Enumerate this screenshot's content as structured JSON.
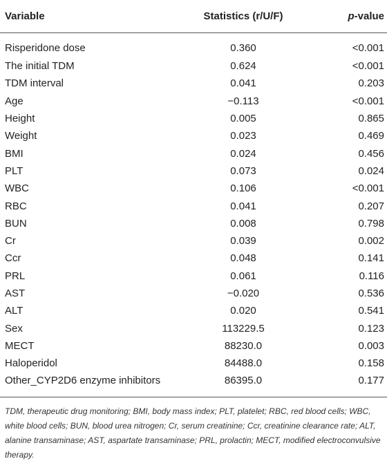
{
  "table": {
    "headers": {
      "variable": "Variable",
      "statistics": "Statistics (r/U/F)",
      "p_prefix": "p",
      "p_suffix": "-value"
    },
    "rows": [
      {
        "variable": "Risperidone dose",
        "statistic": "0.360",
        "p": "<0.001"
      },
      {
        "variable": "The initial TDM",
        "statistic": "0.624",
        "p": "<0.001"
      },
      {
        "variable": "TDM interval",
        "statistic": "0.041",
        "p": "0.203"
      },
      {
        "variable": "Age",
        "statistic": "−0.113",
        "p": "<0.001"
      },
      {
        "variable": "Height",
        "statistic": "0.005",
        "p": "0.865"
      },
      {
        "variable": "Weight",
        "statistic": "0.023",
        "p": "0.469"
      },
      {
        "variable": "BMI",
        "statistic": "0.024",
        "p": "0.456"
      },
      {
        "variable": "PLT",
        "statistic": "0.073",
        "p": "0.024"
      },
      {
        "variable": "WBC",
        "statistic": "0.106",
        "p": "<0.001"
      },
      {
        "variable": "RBC",
        "statistic": "0.041",
        "p": "0.207"
      },
      {
        "variable": "BUN",
        "statistic": "0.008",
        "p": "0.798"
      },
      {
        "variable": "Cr",
        "statistic": "0.039",
        "p": "0.002"
      },
      {
        "variable": "Ccr",
        "statistic": "0.048",
        "p": "0.141"
      },
      {
        "variable": "PRL",
        "statistic": "0.061",
        "p": "0.116"
      },
      {
        "variable": "AST",
        "statistic": "−0.020",
        "p": "0.536"
      },
      {
        "variable": "ALT",
        "statistic": "0.020",
        "p": "0.541"
      },
      {
        "variable": "Sex",
        "statistic": "113229.5",
        "p": "0.123"
      },
      {
        "variable": "MECT",
        "statistic": "88230.0",
        "p": "0.003"
      },
      {
        "variable": "Haloperidol",
        "statistic": "84488.0",
        "p": "0.158"
      },
      {
        "variable": "Other_CYP2D6 enzyme inhibitors",
        "statistic": "86395.0",
        "p": "0.177"
      }
    ]
  },
  "footnote": "TDM, therapeutic drug monitoring; BMI, body mass index; PLT, platelet; RBC, red blood cells; WBC, white blood cells; BUN, blood urea nitrogen; Cr, serum creatinine; Ccr, creatinine clearance rate; ALT, alanine transaminase; AST, aspartate transaminase; PRL, prolactin; MECT, modified electroconvulsive therapy."
}
